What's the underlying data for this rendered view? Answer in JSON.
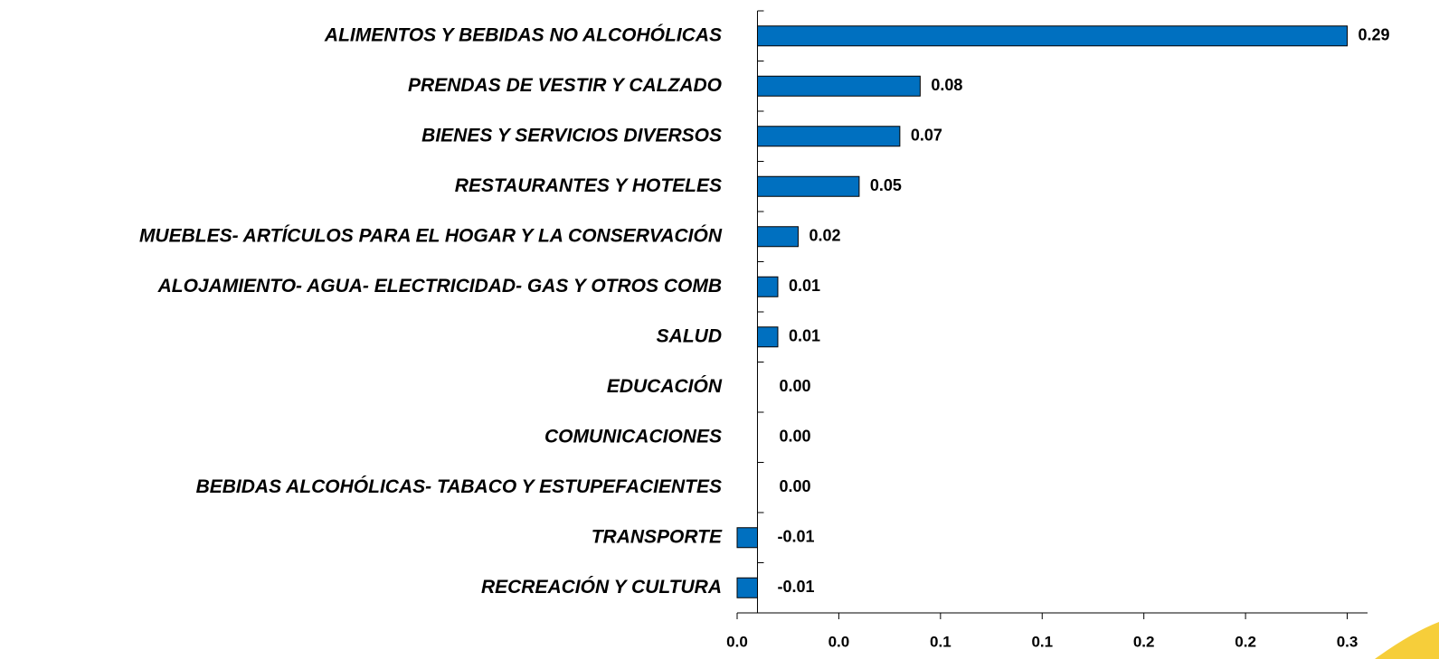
{
  "chart_data": {
    "type": "hbar",
    "categories": [
      "ALIMENTOS Y BEBIDAS NO ALCOHÓLICAS",
      "PRENDAS DE VESTIR Y CALZADO",
      "BIENES Y SERVICIOS DIVERSOS",
      "RESTAURANTES Y HOTELES",
      "MUEBLES- ARTÍCULOS PARA EL HOGAR Y LA CONSERVACIÓN",
      "ALOJAMIENTO- AGUA- ELECTRICIDAD- GAS Y OTROS COMB",
      "SALUD",
      "EDUCACIÓN",
      "COMUNICACIONES",
      "BEBIDAS ALCOHÓLICAS- TABACO Y ESTUPEFACIENTES",
      "TRANSPORTE",
      "RECREACIÓN Y CULTURA"
    ],
    "values": [
      0.29,
      0.08,
      0.07,
      0.05,
      0.02,
      0.01,
      0.01,
      0,
      0,
      0,
      -0.01,
      -0.01
    ],
    "value_labels": [
      "0.29",
      "0.08",
      "0.07",
      "0.05",
      "0.02",
      "0.01",
      "0.01",
      "0.00",
      "0.00",
      "0.00",
      "-0.01",
      "-0.01"
    ],
    "color": "#0070c0",
    "xlim": [
      -0.01,
      0.3
    ],
    "xticks": [
      {
        "value": -0.01,
        "label": "0.0"
      },
      {
        "value": 0.04,
        "label": "0.0"
      },
      {
        "value": 0.09,
        "label": "0.1"
      },
      {
        "value": 0.14,
        "label": "0.1"
      },
      {
        "value": 0.19,
        "label": "0.2"
      },
      {
        "value": 0.24,
        "label": "0.2"
      },
      {
        "value": 0.29,
        "label": "0.3"
      }
    ],
    "grid": false
  }
}
